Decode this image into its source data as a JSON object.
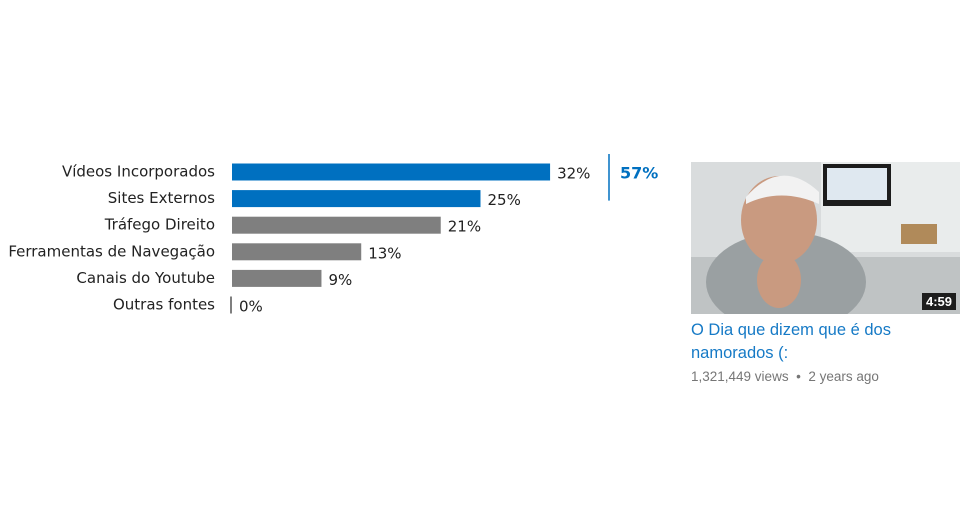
{
  "chart_data": {
    "type": "hbar",
    "categories": [
      "Vídeos Incorporados",
      "Sites Externos",
      "Tráfego Direito",
      "Ferramentas de Navegação",
      "Canais do Youtube",
      "Outras fontes"
    ],
    "values": [
      32,
      25,
      21,
      13,
      9,
      0
    ],
    "value_labels": [
      "32%",
      "25%",
      "21%",
      "13%",
      "9%",
      "0%"
    ],
    "colors": [
      "#0070c0",
      "#0070c0",
      "#7f7f7f",
      "#7f7f7f",
      "#7f7f7f",
      "#7f7f7f"
    ],
    "annotation": {
      "value": 57,
      "label": "57%",
      "color": "#0070c0"
    }
  },
  "video": {
    "duration": "4:59",
    "title": "O Dia que dizem que é dos namorados (:",
    "views": "1,321,449 views",
    "age": "2 years ago"
  }
}
